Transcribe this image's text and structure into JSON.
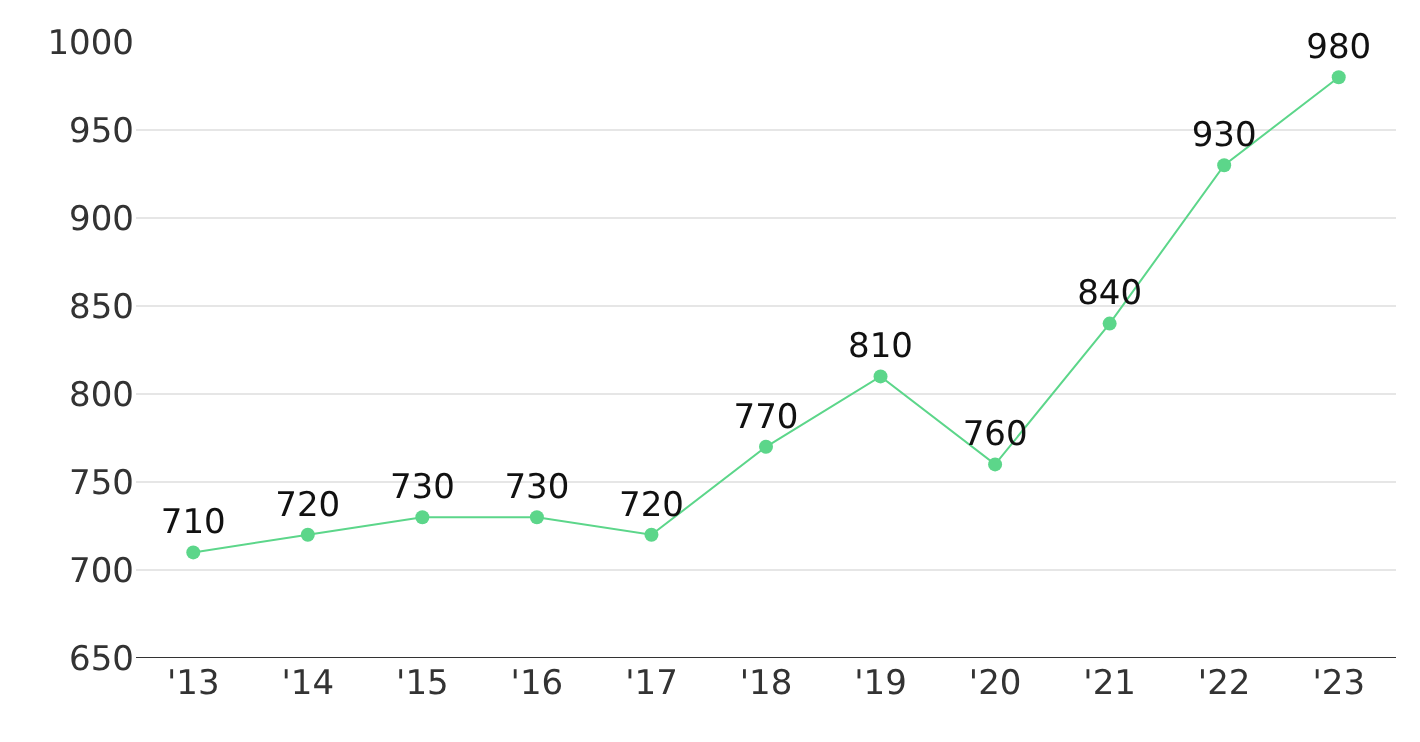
{
  "chart_data": {
    "type": "line",
    "categories": [
      "'13",
      "'14",
      "'15",
      "'16",
      "'17",
      "'18",
      "'19",
      "'20",
      "'21",
      "'22",
      "'23"
    ],
    "values": [
      710,
      720,
      730,
      730,
      720,
      770,
      810,
      760,
      840,
      930,
      980
    ],
    "color": "#5cd68a",
    "marker": "circle",
    "line_style": "solid",
    "data_labels": true,
    "ylim": [
      650,
      1000
    ],
    "yticks": [
      650,
      700,
      750,
      800,
      850,
      900,
      950,
      1000
    ],
    "grid": "y",
    "legend": false
  }
}
